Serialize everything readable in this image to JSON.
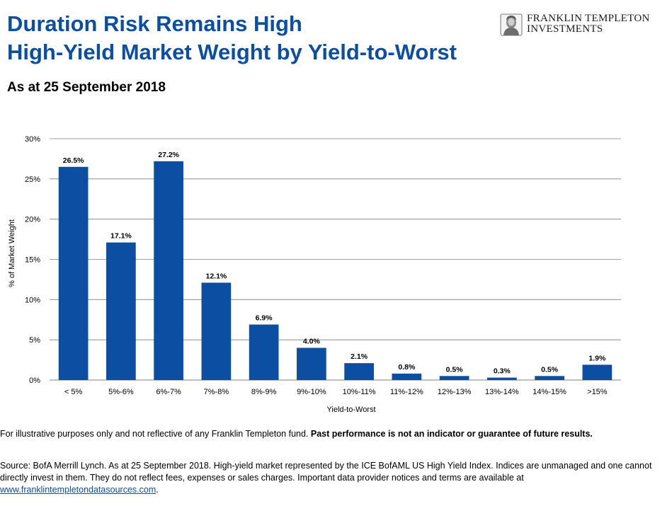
{
  "header": {
    "title_line1": "Duration Risk Remains High",
    "title_line2": "High-Yield Market Weight by Yield-to-Worst",
    "subtitle": "As at 25 September 2018"
  },
  "logo": {
    "line1": "FRANKLIN TEMPLETON",
    "line2": "INVESTMENTS",
    "icon": "franklin-portrait-icon"
  },
  "colors": {
    "title": "#0b4ea2",
    "bar": "#0b4ea2",
    "grid": "#7f7f7f"
  },
  "chart_data": {
    "type": "bar",
    "categories": [
      "< 5%",
      "5%-6%",
      "6%-7%",
      "7%-8%",
      "8%-9%",
      "9%-10%",
      "10%-11%",
      "11%-12%",
      "12%-13%",
      "13%-14%",
      "14%-15%",
      ">15%"
    ],
    "values": [
      26.5,
      17.1,
      27.2,
      12.1,
      6.9,
      4.0,
      2.1,
      0.8,
      0.5,
      0.3,
      0.5,
      1.9
    ],
    "data_labels": [
      "26.5%",
      "17.1%",
      "27.2%",
      "12.1%",
      "6.9%",
      "4.0%",
      "2.1%",
      "0.8%",
      "0.5%",
      "0.3%",
      "0.5%",
      "1.9%"
    ],
    "ylim": [
      0,
      30
    ],
    "yticks": [
      0,
      5,
      10,
      15,
      20,
      25,
      30
    ],
    "ytick_labels": [
      "0%",
      "5%",
      "10%",
      "15%",
      "20%",
      "25%",
      "30%"
    ],
    "xlabel": "Yield-to-Worst",
    "ylabel": "% of Market Weight",
    "grid": true
  },
  "footer": {
    "note_plain": "For illustrative purposes only and not reflective of any Franklin Templeton fund. ",
    "note_bold": "Past performance is not an indicator or guarantee of future results.",
    "source_text": "Source: BofA Merrill Lynch. As at 25 September 2018. High-yield market represented by the ICE BofAML US High Yield Index. Indices are unmanaged and one cannot directly invest in them. They do not reflect fees, expenses or sales charges. Important data provider notices and terms are available at ",
    "source_link": "www.franklintempletondatasources.com",
    "source_end": "."
  }
}
